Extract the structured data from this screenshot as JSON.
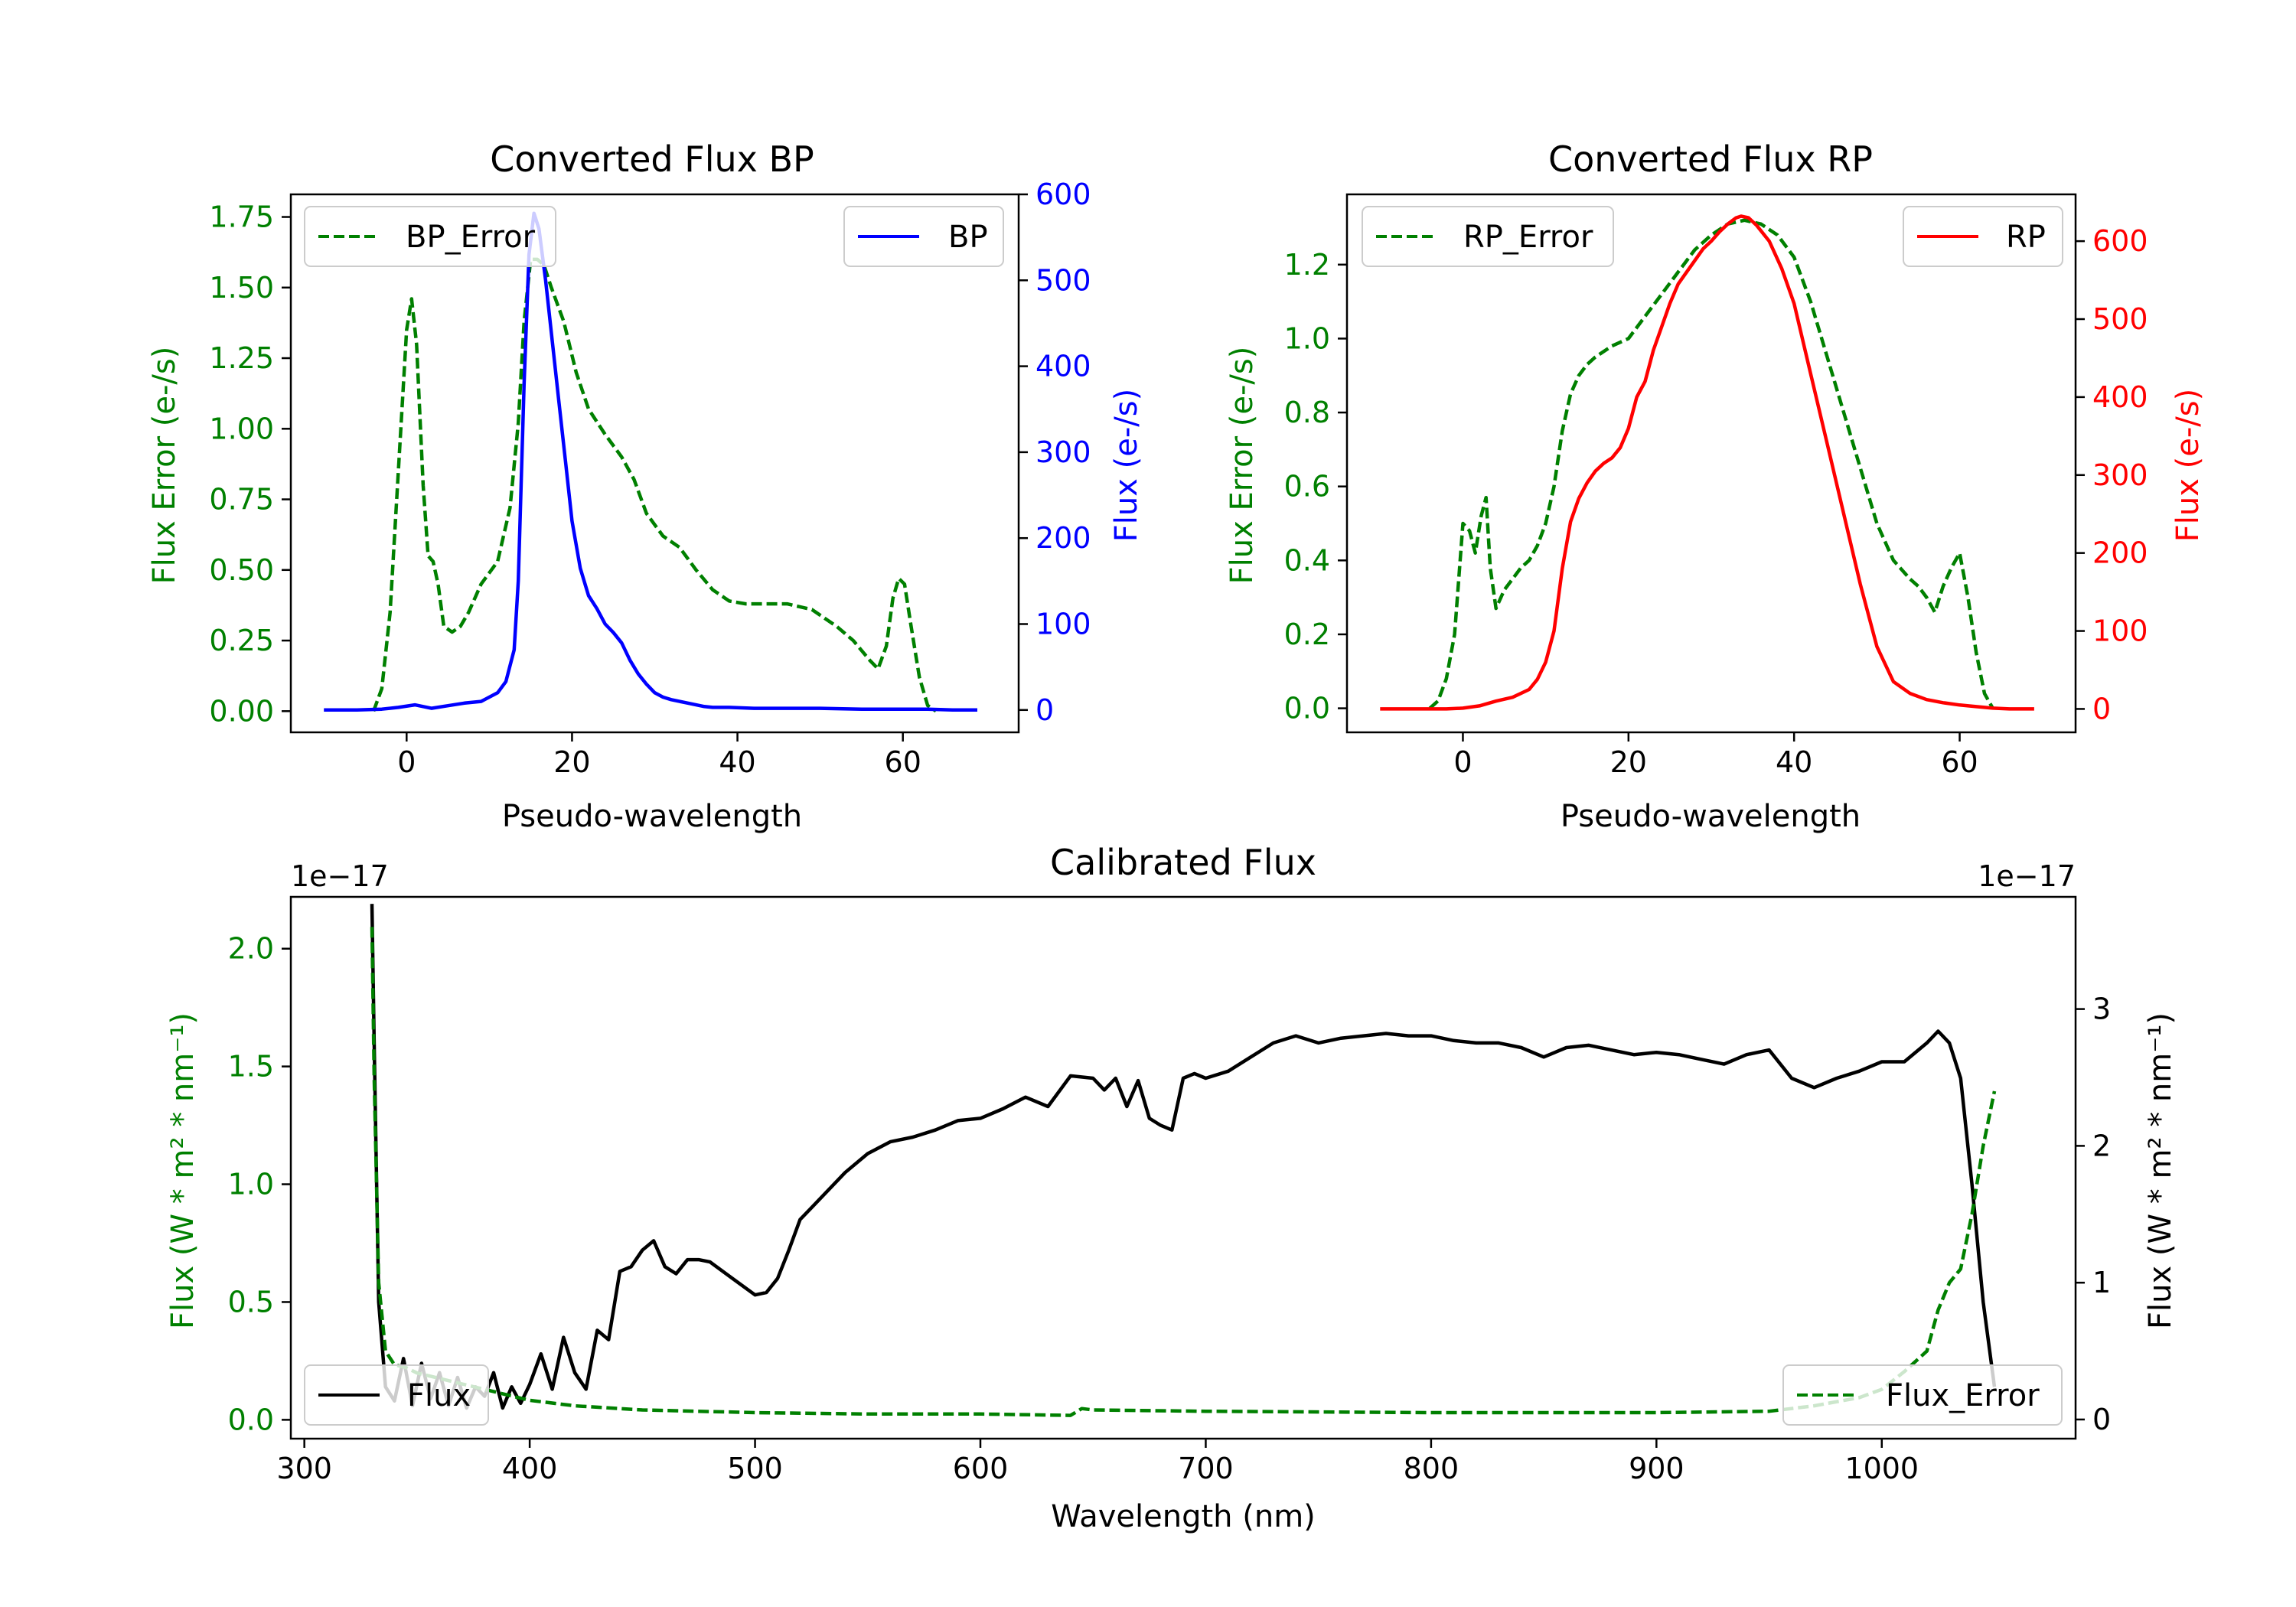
{
  "colors": {
    "error": "#008000",
    "bp": "#0000ff",
    "rp": "#ff0000",
    "flux": "#000000",
    "axis": "#000000"
  },
  "chart_data": [
    {
      "id": "bp",
      "type": "line",
      "title": "Converted Flux BP",
      "xlabel": "Pseudo-wavelength",
      "ylabel_left": "Flux Error (e-/s)",
      "ylabel_right": "Flux (e-/s)",
      "xlim": [
        -14,
        74
      ],
      "xticks": [
        0,
        20,
        40,
        60
      ],
      "ylim_left": [
        -0.075,
        1.83
      ],
      "yticks_left": [
        0.0,
        0.25,
        0.5,
        0.75,
        1.0,
        1.25,
        1.5,
        1.75
      ],
      "ylim_right": [
        -26,
        600
      ],
      "yticks_right": [
        0,
        100,
        200,
        300,
        400,
        500,
        600
      ],
      "legend_left": "BP_Error",
      "legend_right": "BP",
      "series": [
        {
          "name": "BP_Error",
          "axis": "left",
          "style": "dashed",
          "color_key": "error",
          "x": [
            -4,
            -3,
            -2,
            -1,
            0,
            0.6,
            1.2,
            2,
            2.6,
            3.2,
            3.8,
            4.5,
            5.5,
            6.5,
            7.5,
            9,
            11,
            12.5,
            13.5,
            14.2,
            15,
            15.8,
            16.6,
            17.5,
            19,
            20.5,
            22,
            24,
            26,
            27.5,
            29,
            31,
            33,
            35,
            37,
            39,
            41,
            43,
            46,
            49,
            52,
            54,
            56,
            57,
            58,
            58.8,
            59.5,
            60.2,
            61,
            62,
            63,
            64
          ],
          "values": [
            0.0,
            0.08,
            0.35,
            0.85,
            1.35,
            1.46,
            1.3,
            0.8,
            0.55,
            0.53,
            0.45,
            0.3,
            0.28,
            0.3,
            0.35,
            0.45,
            0.53,
            0.72,
            1.02,
            1.38,
            1.6,
            1.6,
            1.58,
            1.5,
            1.38,
            1.2,
            1.07,
            0.98,
            0.9,
            0.82,
            0.7,
            0.62,
            0.58,
            0.5,
            0.43,
            0.39,
            0.38,
            0.38,
            0.38,
            0.36,
            0.3,
            0.25,
            0.18,
            0.15,
            0.23,
            0.4,
            0.47,
            0.45,
            0.3,
            0.12,
            0.02,
            0.0
          ]
        },
        {
          "name": "BP",
          "axis": "right",
          "style": "solid",
          "color_key": "bp",
          "x": [
            -10,
            -6,
            -3,
            -1,
            1,
            3,
            5,
            7,
            9,
            11,
            12,
            13,
            13.5,
            14.2,
            14.8,
            15.4,
            16,
            16.8,
            17.6,
            18.4,
            19.2,
            20,
            21,
            22,
            23,
            24,
            25,
            26,
            27,
            28,
            29,
            30,
            31,
            32,
            33,
            34,
            35,
            36,
            37,
            39,
            42,
            45,
            50,
            55,
            60,
            63,
            66,
            69
          ],
          "values": [
            0,
            0,
            1,
            3,
            6,
            2,
            5,
            8,
            10,
            20,
            33,
            70,
            150,
            380,
            530,
            578,
            560,
            500,
            430,
            360,
            290,
            220,
            165,
            133,
            118,
            100,
            90,
            78,
            58,
            42,
            30,
            20,
            15,
            12,
            10,
            8,
            6,
            4,
            3,
            3,
            2,
            2,
            2,
            1,
            1,
            1,
            0,
            0
          ]
        }
      ]
    },
    {
      "id": "rp",
      "type": "line",
      "title": "Converted Flux RP",
      "xlabel": "Pseudo-wavelength",
      "ylabel_left": "Flux Error (e-/s)",
      "ylabel_right": "Flux (e-/s)",
      "xlim": [
        -14,
        74
      ],
      "xticks": [
        0,
        20,
        40,
        60
      ],
      "ylim_left": [
        -0.065,
        1.39
      ],
      "yticks_left": [
        0.0,
        0.2,
        0.4,
        0.6,
        0.8,
        1.0,
        1.2
      ],
      "ylim_right": [
        -30,
        660
      ],
      "yticks_right": [
        0,
        100,
        200,
        300,
        400,
        500,
        600
      ],
      "legend_left": "RP_Error",
      "legend_right": "RP",
      "series": [
        {
          "name": "RP_Error",
          "axis": "right_none",
          "style": "dashed",
          "color_key": "error",
          "x": [
            -4,
            -3,
            -2,
            -1,
            0,
            0.8,
            1.5,
            2.2,
            2.8,
            3.3,
            4,
            5,
            6,
            7,
            8,
            9,
            10,
            11,
            12,
            13,
            14,
            15,
            16,
            18,
            20,
            22,
            24,
            26,
            28,
            30,
            32,
            34,
            36,
            38,
            40,
            42,
            44,
            46,
            48,
            50,
            52,
            54,
            55,
            56,
            57,
            58,
            59,
            60,
            61,
            62,
            63,
            64
          ],
          "values": [
            0.0,
            0.02,
            0.08,
            0.2,
            0.5,
            0.48,
            0.42,
            0.52,
            0.57,
            0.38,
            0.27,
            0.32,
            0.35,
            0.38,
            0.4,
            0.44,
            0.5,
            0.6,
            0.75,
            0.85,
            0.9,
            0.93,
            0.95,
            0.98,
            1.0,
            1.06,
            1.12,
            1.18,
            1.24,
            1.28,
            1.31,
            1.32,
            1.31,
            1.28,
            1.22,
            1.1,
            0.95,
            0.8,
            0.65,
            0.5,
            0.4,
            0.35,
            0.33,
            0.3,
            0.26,
            0.33,
            0.38,
            0.42,
            0.3,
            0.15,
            0.04,
            0.0
          ]
        },
        {
          "name": "RP",
          "axis": "right",
          "style": "solid",
          "color_key": "rp",
          "x": [
            -10,
            -5,
            -2,
            0,
            2,
            4,
            6,
            8,
            9,
            10,
            11,
            12,
            13,
            14,
            15,
            16,
            17,
            18,
            19,
            20,
            21,
            22,
            23,
            24,
            25,
            26,
            27,
            28,
            29,
            30,
            31,
            32,
            33,
            33.6,
            34.5,
            35.5,
            37,
            38.5,
            40,
            42,
            44,
            46,
            48,
            50,
            52,
            54,
            56,
            58,
            60,
            62,
            64,
            66,
            69
          ],
          "values": [
            0,
            0,
            0,
            1,
            4,
            10,
            15,
            25,
            38,
            60,
            100,
            180,
            240,
            270,
            290,
            305,
            315,
            322,
            335,
            360,
            400,
            420,
            460,
            490,
            520,
            545,
            560,
            575,
            590,
            600,
            612,
            622,
            630,
            632,
            630,
            620,
            600,
            565,
            520,
            430,
            340,
            250,
            160,
            80,
            35,
            20,
            12,
            8,
            5,
            3,
            1,
            0,
            0
          ]
        }
      ]
    },
    {
      "id": "calibrated",
      "type": "line",
      "title": "Calibrated Flux",
      "xlabel": "Wavelength (nm)",
      "ylabel_left": "Flux (W * m² * nm⁻¹)",
      "ylabel_right": "Flux (W * m² * nm⁻¹)",
      "offset_left": "1e−17",
      "offset_right": "1e−17",
      "xlim": [
        294,
        1086
      ],
      "xticks": [
        300,
        400,
        500,
        600,
        700,
        800,
        900,
        1000
      ],
      "ylim_left": [
        -0.08,
        2.22
      ],
      "yticks_left": [
        0.0,
        0.5,
        1.0,
        1.5,
        2.0
      ],
      "ylim_right": [
        -0.14,
        3.82
      ],
      "yticks_right": [
        0,
        1,
        2,
        3
      ],
      "legend_left": "Flux",
      "legend_right": "Flux_Error",
      "series": [
        {
          "name": "Flux",
          "axis": "left",
          "style": "solid",
          "color_key": "flux",
          "x": [
            330,
            331,
            333,
            336,
            340,
            344,
            348,
            352,
            356,
            360,
            364,
            368,
            372,
            376,
            380,
            384,
            388,
            392,
            396,
            400,
            405,
            410,
            415,
            420,
            425,
            430,
            435,
            440,
            445,
            450,
            455,
            460,
            465,
            470,
            475,
            480,
            490,
            500,
            505,
            510,
            515,
            520,
            525,
            530,
            540,
            550,
            560,
            570,
            580,
            590,
            600,
            610,
            620,
            630,
            640,
            650,
            655,
            660,
            665,
            670,
            675,
            680,
            685,
            690,
            695,
            700,
            710,
            720,
            730,
            740,
            750,
            760,
            770,
            780,
            790,
            800,
            810,
            820,
            830,
            840,
            850,
            860,
            870,
            880,
            890,
            900,
            910,
            920,
            930,
            940,
            950,
            960,
            970,
            980,
            990,
            1000,
            1010,
            1020,
            1025,
            1030,
            1035,
            1040,
            1045,
            1050
          ],
          "values": [
            2.19,
            1.6,
            0.5,
            0.14,
            0.08,
            0.26,
            0.06,
            0.24,
            0.09,
            0.2,
            0.06,
            0.18,
            0.05,
            0.14,
            0.1,
            0.2,
            0.05,
            0.14,
            0.07,
            0.15,
            0.28,
            0.13,
            0.35,
            0.2,
            0.13,
            0.38,
            0.34,
            0.63,
            0.65,
            0.72,
            0.76,
            0.65,
            0.62,
            0.68,
            0.68,
            0.67,
            0.6,
            0.53,
            0.54,
            0.6,
            0.72,
            0.85,
            0.9,
            0.95,
            1.05,
            1.13,
            1.18,
            1.2,
            1.23,
            1.27,
            1.28,
            1.32,
            1.37,
            1.33,
            1.46,
            1.45,
            1.4,
            1.45,
            1.33,
            1.44,
            1.28,
            1.25,
            1.23,
            1.45,
            1.47,
            1.45,
            1.48,
            1.54,
            1.6,
            1.63,
            1.6,
            1.62,
            1.63,
            1.64,
            1.63,
            1.63,
            1.61,
            1.6,
            1.6,
            1.58,
            1.54,
            1.58,
            1.59,
            1.57,
            1.55,
            1.56,
            1.55,
            1.53,
            1.51,
            1.55,
            1.57,
            1.45,
            1.41,
            1.45,
            1.48,
            1.52,
            1.52,
            1.6,
            1.65,
            1.6,
            1.45,
            1.0,
            0.5,
            0.14
          ]
        },
        {
          "name": "Flux_Error",
          "axis": "right",
          "style": "dashed",
          "color_key": "error",
          "x": [
            330,
            331,
            333,
            336,
            340,
            345,
            350,
            360,
            370,
            380,
            390,
            400,
            420,
            450,
            500,
            550,
            600,
            640,
            645,
            650,
            700,
            800,
            900,
            950,
            970,
            990,
            1000,
            1010,
            1020,
            1025,
            1030,
            1035,
            1040,
            1045,
            1050
          ],
          "values": [
            3.6,
            2.5,
            1.0,
            0.5,
            0.4,
            0.38,
            0.34,
            0.3,
            0.26,
            0.22,
            0.18,
            0.14,
            0.1,
            0.07,
            0.05,
            0.04,
            0.04,
            0.03,
            0.08,
            0.07,
            0.06,
            0.05,
            0.05,
            0.06,
            0.1,
            0.16,
            0.22,
            0.35,
            0.5,
            0.8,
            1.0,
            1.1,
            1.5,
            2.0,
            2.4
          ]
        }
      ]
    }
  ]
}
